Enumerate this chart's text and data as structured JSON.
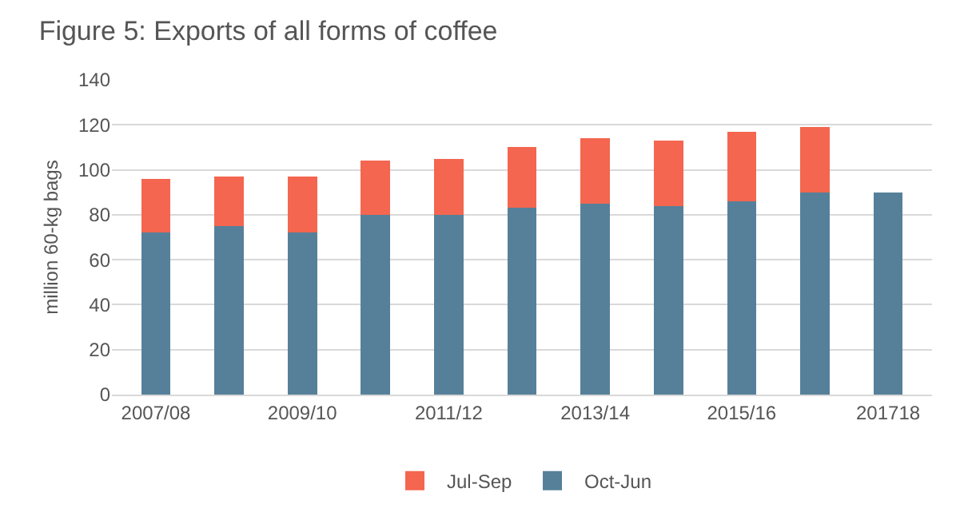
{
  "chart_data": {
    "type": "bar",
    "title": "Figure 5: Exports of all forms of coffee",
    "ylabel": "million 60-kg bags",
    "categories": [
      "2007/08",
      null,
      "2009/10",
      null,
      "2011/12",
      null,
      "2013/14",
      null,
      "2015/16",
      null,
      "201718"
    ],
    "stacked": true,
    "series": [
      {
        "name": "Oct-Jun",
        "color": "#56809a",
        "values": [
          72,
          75,
          72,
          80,
          80,
          83,
          85,
          84,
          86,
          90,
          90
        ]
      },
      {
        "name": "Jul-Sep",
        "color": "#f4664f",
        "values": [
          24,
          22,
          25,
          24,
          25,
          27,
          29,
          29,
          31,
          29,
          null
        ]
      }
    ],
    "ylim": [
      0,
      140
    ],
    "yticks": [
      0,
      20,
      40,
      60,
      80,
      100,
      120,
      140
    ],
    "grid": "y",
    "legend": "bottom"
  }
}
